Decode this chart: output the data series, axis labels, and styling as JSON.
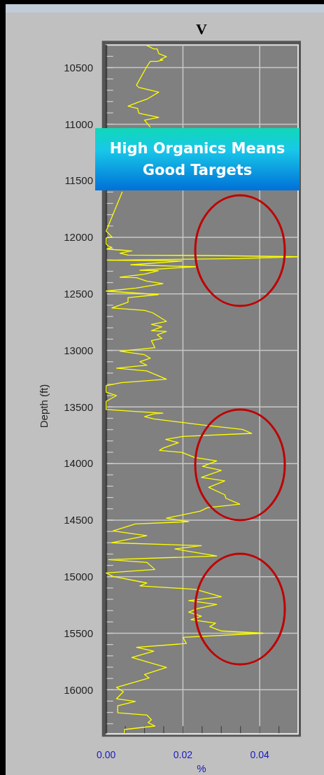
{
  "chart_data": {
    "type": "line",
    "title": "V",
    "xlabel": "%",
    "ylabel": "Depth (ft)",
    "annotations": [
      "High Organics Means Good Targets"
    ],
    "xlim": [
      0,
      0.05
    ],
    "ylim": [
      16390,
      10300
    ],
    "xticks": [
      {
        "value": 0,
        "label": "0.00"
      },
      {
        "value": 0.005,
        "label": null
      },
      {
        "value": 0.01,
        "label": null
      },
      {
        "value": 0.015,
        "label": null
      },
      {
        "value": 0.02,
        "label": "0.02"
      },
      {
        "value": 0.025,
        "label": null
      },
      {
        "value": 0.03,
        "label": null
      },
      {
        "value": 0.035,
        "label": null
      },
      {
        "value": 0.04,
        "label": "0.04"
      },
      {
        "value": 0.045,
        "label": null
      }
    ],
    "yticks": [
      {
        "value": 10400,
        "label": null
      },
      10500,
      {
        "value": 10600,
        "label": null
      },
      {
        "value": 10700,
        "label": null
      },
      {
        "value": 10800,
        "label": null
      },
      {
        "value": 10900,
        "label": null
      },
      11000,
      {
        "value": 11100,
        "label": null
      },
      {
        "value": 11200,
        "label": null
      },
      {
        "value": 11300,
        "label": null
      },
      {
        "value": 11400,
        "label": null
      },
      11500,
      {
        "value": 11600,
        "label": null
      },
      {
        "value": 11700,
        "label": null
      },
      {
        "value": 11800,
        "label": null
      },
      {
        "value": 11900,
        "label": null
      },
      12000,
      {
        "value": 12100,
        "label": null
      },
      {
        "value": 12200,
        "label": null
      },
      {
        "value": 12300,
        "label": null
      },
      {
        "value": 12400,
        "label": null
      },
      12500,
      {
        "value": 12600,
        "label": null
      },
      {
        "value": 12700,
        "label": null
      },
      {
        "value": 12800,
        "label": null
      },
      {
        "value": 12900,
        "label": null
      },
      13000,
      {
        "value": 13100,
        "label": null
      },
      {
        "value": 13200,
        "label": null
      },
      {
        "value": 13300,
        "label": null
      },
      {
        "value": 13400,
        "label": null
      },
      13500,
      {
        "value": 13600,
        "label": null
      },
      {
        "value": 13700,
        "label": null
      },
      {
        "value": 13800,
        "label": null
      },
      {
        "value": 13900,
        "label": null
      },
      14000,
      {
        "value": 14100,
        "label": null
      },
      {
        "value": 14200,
        "label": null
      },
      {
        "value": 14300,
        "label": null
      },
      {
        "value": 14400,
        "label": null
      },
      14500,
      {
        "value": 14600,
        "label": null
      },
      {
        "value": 14700,
        "label": null
      },
      {
        "value": 14800,
        "label": null
      },
      {
        "value": 14900,
        "label": null
      },
      15000,
      {
        "value": 15100,
        "label": null
      },
      {
        "value": 15200,
        "label": null
      },
      {
        "value": 15300,
        "label": null
      },
      {
        "value": 15400,
        "label": null
      },
      15500,
      {
        "value": 15600,
        "label": null
      },
      {
        "value": 15700,
        "label": null
      },
      {
        "value": 15800,
        "label": null
      },
      {
        "value": 15900,
        "label": null
      },
      16000,
      {
        "value": 16100,
        "label": null
      },
      {
        "value": 16200,
        "label": null
      },
      {
        "value": 16300,
        "label": null
      }
    ],
    "grid": true,
    "series": [
      {
        "color": "#ffff00",
        "x": [
          0.0106,
          0.0124,
          0.0133,
          0.0137,
          0.0157,
          0.0141,
          0.0148,
          0.0133,
          0.0115,
          0.0106,
          0.0079,
          0.0085,
          0.0137,
          0.0106,
          0.0085,
          0.0057,
          0.007,
          0.0082,
          0.0085,
          0.0097,
          0.0137,
          0.01,
          0.0106,
          0.0115,
          null,
          0.0042,
          0.0,
          0.0015,
          0.0,
          0.0,
          0.0006,
          0.0015,
          0.0002,
          0.0039,
          0.0067,
          0.0036,
          0.0057,
          0.027,
          0.05,
          0.0342,
          0.0003,
          0.0197,
          0.0064,
          0.0233,
          0.0088,
          0.0136,
          0.01,
          0.0036,
          0.0079,
          0.0106,
          0.0148,
          0.0076,
          0.0,
          0.0136,
          0.0057,
          0.0057,
          0.0015,
          0.01,
          0.0121,
          0.0157,
          0.0118,
          0.0145,
          0.0118,
          0.0157,
          0.0133,
          0.0145,
          0.0118,
          0.0127,
          0.0036,
          0.01,
          0.0115,
          0.0088,
          0.0106,
          0.0027,
          0.0106,
          0.0157,
          0.0039,
          0.0,
          0.0,
          0.0027,
          0.0,
          0.0,
          0.0073,
          0.0148,
          0.0124,
          0.01,
          0.0124,
          0.0245,
          0.0355,
          0.0379,
          0.02,
          0.0155,
          0.0188,
          0.0148,
          0.0139,
          0.0197,
          0.023,
          0.0288,
          0.0251,
          0.03,
          0.0248,
          0.0309,
          0.0267,
          0.0309,
          0.0312,
          0.0348,
          0.0264,
          0.0245,
          0.0157,
          0.0215,
          0.0076,
          0.0018,
          0.0106,
          0.0051,
          0.0015,
          0.0248,
          0.0179,
          0.0288,
          0.0006,
          0.0106,
          0.0127,
          0.0,
          0.0018,
          0.0106,
          0.0088,
          0.0233,
          0.03,
          0.0215,
          0.0288,
          0.0239,
          0.0215,
          0.0248,
          0.0221,
          0.0285,
          0.027,
          0.03,
          0.0409,
          0.02,
          0.0209,
          0.0079,
          0.0124,
          0.0067,
          0.0157,
          0.01,
          0.0112,
          0.0027,
          0.0045,
          0.0027,
          0.0076,
          0.003,
          0.003,
          0.0106,
          0.0118,
          0.0109,
          0.0127,
          0.0048,
          0.0048
        ],
        "values": [
          10304,
          10335,
          10335,
          10376,
          10403,
          10428,
          10432,
          10444,
          10444,
          10490,
          10655,
          10675,
          10717,
          10779,
          10803,
          10840,
          10851,
          10861,
          10902,
          10912,
          10939,
          10964,
          10989,
          11026,
          null,
          11598,
          11944,
          11996,
          12006,
          12058,
          12079,
          12089,
          12105,
          12113,
          12120,
          12140,
          12157,
          12161,
          12172,
          12188,
          12202,
          12209,
          12243,
          12260,
          12291,
          12295,
          12326,
          12353,
          12357,
          12388,
          12409,
          12450,
          12475,
          12506,
          12533,
          12574,
          12625,
          12646,
          12667,
          12743,
          12770,
          12791,
          12825,
          12832,
          12862,
          12893,
          12914,
          12976,
          13007,
          13038,
          13069,
          13100,
          13131,
          13157,
          13182,
          13254,
          13285,
          13312,
          13368,
          13399,
          13450,
          13522,
          13539,
          13554,
          13560,
          13585,
          13605,
          13657,
          13698,
          13733,
          13760,
          13787,
          13816,
          13864,
          13884,
          13901,
          13946,
          13977,
          14025,
          14060,
          14122,
          14153,
          14210,
          14276,
          14307,
          14359,
          14390,
          14421,
          14483,
          14514,
          14534,
          14596,
          14638,
          14675,
          14700,
          14726,
          14755,
          14817,
          14850,
          14874,
          14936,
          14967,
          14998,
          15056,
          15081,
          15112,
          15178,
          15211,
          15246,
          15281,
          15314,
          15349,
          15380,
          15411,
          15442,
          15480,
          15500,
          15536,
          15591,
          15624,
          15659,
          15715,
          15803,
          15865,
          15896,
          15979,
          16017,
          16079,
          16103,
          16141,
          16203,
          16223,
          16265,
          16290,
          16320,
          16351,
          16390
        ]
      }
    ]
  }
}
